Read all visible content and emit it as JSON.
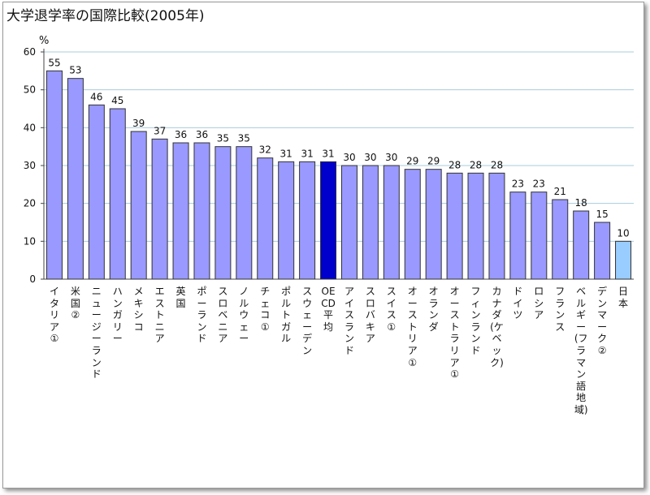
{
  "title": "大学退学率の国際比較(2005年)",
  "colors": {
    "bar": "#9999ff",
    "oecd": "#0000cc",
    "japan": "#99ccff",
    "grid": "#aaccdd"
  },
  "chart_data": {
    "type": "bar",
    "title": "大学退学率の国際比較(2005年)",
    "ylabel": "%",
    "xlabel": "",
    "ylim": [
      0,
      60
    ],
    "yticks": [
      0,
      10,
      20,
      30,
      40,
      50,
      60
    ],
    "grid": true,
    "categories": [
      "イタリア①",
      "米国②",
      "ニュージーランド",
      "ハンガリー",
      "メキシコ",
      "エストニア",
      "英国",
      "ポーランド",
      "スロベニア",
      "ノルウェー",
      "チェコ①",
      "ポルトガル",
      "スウェーデン",
      "OECD平均",
      "アイスランド",
      "スロバキア",
      "スイス①",
      "オーストリア①",
      "オランダ",
      "オーストラリア①",
      "フィンランド",
      "カナダ(ケベック)",
      "ドイツ",
      "ロシア",
      "フランス",
      "ベルギー(フラマン語地域)",
      "デンマーク②",
      "日本"
    ],
    "values": [
      55,
      53,
      46,
      45,
      39,
      37,
      36,
      36,
      35,
      35,
      32,
      31,
      31,
      31,
      30,
      30,
      30,
      29,
      29,
      28,
      28,
      28,
      23,
      23,
      21,
      18,
      15,
      10
    ],
    "highlight": {
      "OECD平均": "oecd",
      "日本": "japan"
    }
  }
}
